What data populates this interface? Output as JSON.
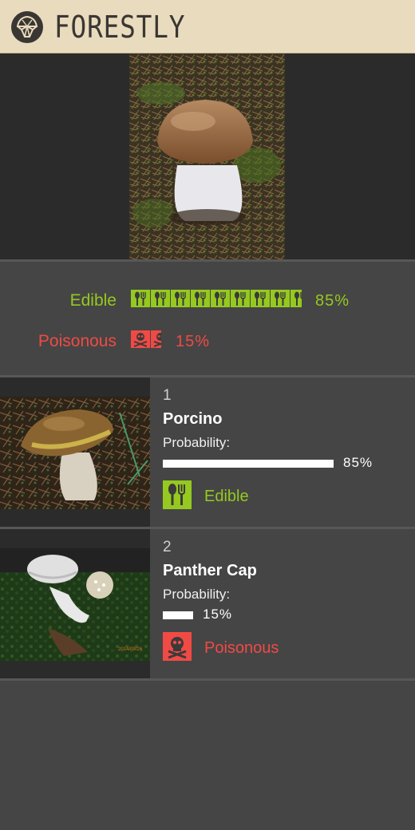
{
  "app": {
    "brand": "FORESTLY",
    "logo_icon": "mushroom-logo-icon"
  },
  "colors": {
    "edible": "#95c91f",
    "poisonous": "#f04a45",
    "header_bg": "#e9dbbd"
  },
  "summary": {
    "edible": {
      "label": "Edible",
      "percent_text": "85%",
      "value": 0.85,
      "icon": "spoon-fork-icon"
    },
    "poisonous": {
      "label": "Poisonous",
      "percent_text": "15%",
      "value": 0.15,
      "icon": "skull-crossbones-icon"
    }
  },
  "results": [
    {
      "rank": "1",
      "name": "Porcino",
      "probability_label": "Probability:",
      "probability_text": "85%",
      "probability": 0.85,
      "category": "Edible",
      "category_icon": "spoon-fork-icon"
    },
    {
      "rank": "2",
      "name": "Panther Cap",
      "probability_label": "Probability:",
      "probability_text": "15%",
      "probability": 0.15,
      "category": "Poisonous",
      "category_icon": "skull-crossbones-icon"
    }
  ]
}
